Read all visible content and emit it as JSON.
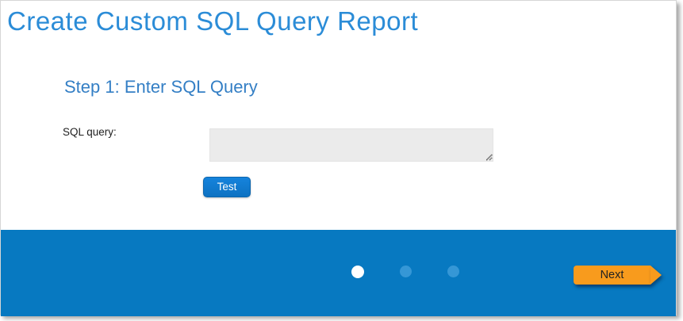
{
  "page": {
    "title": "Create Custom SQL Query Report"
  },
  "wizard": {
    "step_heading": "Step 1: Enter SQL Query",
    "form": {
      "sql_query_label": "SQL query:",
      "sql_query_value": "",
      "test_button_label": "Test"
    },
    "footer": {
      "steps": [
        {
          "class": "dot dot-1 active",
          "state": "active"
        },
        {
          "class": "dot dot-2",
          "state": "inactive"
        },
        {
          "class": "dot dot-3",
          "state": "inactive"
        }
      ],
      "next_button_label": "Next"
    }
  },
  "colors": {
    "title_blue": "#2b8cd7",
    "heading_blue": "#347fc5",
    "button_blue": "#0e72c2",
    "footer_blue": "#0779c1",
    "inactive_dot_blue": "#3597d6",
    "active_dot": "#ffffff",
    "next_orange": "#f89b1d",
    "textarea_gray": "#ebebeb"
  }
}
